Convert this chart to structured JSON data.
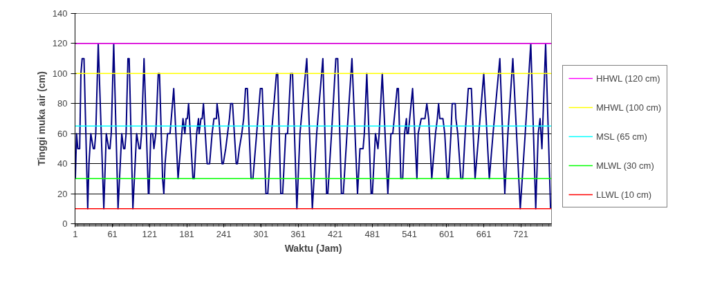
{
  "chart_data": {
    "type": "line",
    "xlabel": "Waktu (Jam)",
    "ylabel": "Tinggi muka air (cm)",
    "xlim": [
      0.5,
      770.5
    ],
    "xticks": [
      1,
      61,
      121,
      181,
      241,
      301,
      361,
      421,
      481,
      541,
      601,
      661,
      721
    ],
    "ylim": [
      0,
      140
    ],
    "yticks": [
      0,
      20,
      40,
      60,
      80,
      100,
      120,
      140
    ],
    "grid": "y",
    "legend": "right",
    "marker": "none",
    "line_style": "solid",
    "series": [
      {
        "color": "#000080",
        "x": [
          1,
          3,
          5,
          8,
          10,
          12,
          15,
          21,
          23,
          26,
          30,
          32,
          34,
          38,
          47,
          51,
          55,
          57,
          59,
          63,
          70,
          76,
          79,
          81,
          83,
          86,
          88,
          94,
          100,
          104,
          106,
          108,
          112,
          119,
          120,
          123,
          126,
          128,
          131,
          135,
          137,
          142,
          144,
          146,
          150,
          154,
          160,
          167,
          173,
          175,
          178,
          180,
          182,
          184,
          191,
          193,
          197,
          200,
          201,
          204,
          206,
          208,
          214,
          218,
          222,
          225,
          229,
          230,
          233,
          238,
          240,
          244,
          247,
          250,
          252,
          255,
          261,
          263,
          266,
          270,
          273,
          276,
          279,
          285,
          288,
          294,
          300,
          303,
          309,
          312,
          318,
          324,
          326,
          328,
          333,
          336,
          341,
          344,
          349,
          352,
          359,
          364,
          375,
          384,
          391,
          401,
          407,
          409,
          415,
          422,
          425,
          431,
          434,
          440,
          448,
          457,
          461,
          466,
          468,
          472,
          479,
          481,
          486,
          490,
          492,
          497,
          506,
          511,
          514,
          521,
          523,
          527,
          530,
          533,
          536,
          537,
          539,
          546,
          553,
          555,
          560,
          566,
          569,
          572,
          577,
          583,
          586,
          588,
          590,
          595,
          598,
          602,
          604,
          608,
          610,
          615,
          616,
          619,
          624,
          627,
          631,
          636,
          641,
          647,
          653,
          661,
          670,
          676,
          687,
          695,
          700,
          708,
          720,
          728,
          737,
          745,
          749,
          752,
          755,
          761,
          769
        ],
        "values": [
          30,
          60,
          50,
          50,
          100,
          110,
          110,
          10,
          40,
          60,
          50,
          50,
          60,
          120,
          10,
          60,
          50,
          50,
          60,
          120,
          10,
          60,
          50,
          50,
          60,
          110,
          110,
          10,
          60,
          50,
          50,
          60,
          110,
          20,
          20,
          60,
          60,
          50,
          60,
          100,
          100,
          30,
          20,
          40,
          60,
          60,
          90,
          30,
          60,
          70,
          60,
          70,
          70,
          80,
          30,
          30,
          60,
          70,
          60,
          70,
          70,
          80,
          40,
          40,
          60,
          70,
          70,
          80,
          70,
          40,
          40,
          50,
          60,
          70,
          80,
          80,
          40,
          40,
          50,
          60,
          70,
          90,
          90,
          30,
          30,
          60,
          90,
          90,
          20,
          20,
          60,
          90,
          100,
          100,
          20,
          20,
          60,
          60,
          100,
          100,
          10,
          60,
          110,
          10,
          60,
          110,
          20,
          20,
          60,
          110,
          110,
          20,
          20,
          60,
          110,
          20,
          50,
          50,
          60,
          100,
          20,
          20,
          60,
          50,
          60,
          100,
          20,
          60,
          60,
          90,
          90,
          30,
          30,
          60,
          70,
          60,
          60,
          90,
          30,
          60,
          70,
          70,
          80,
          70,
          30,
          60,
          70,
          80,
          70,
          70,
          60,
          30,
          30,
          60,
          80,
          80,
          70,
          60,
          30,
          30,
          60,
          90,
          90,
          30,
          60,
          100,
          30,
          60,
          110,
          20,
          60,
          110,
          10,
          60,
          120,
          10,
          60,
          70,
          50,
          120,
          10
        ]
      },
      {
        "name": "HHWL (120 cm)",
        "color": "#ff00ff",
        "x": [
          1,
          770
        ],
        "values": [
          120,
          120
        ]
      },
      {
        "name": "MHWL (100 cm)",
        "color": "#ffff00",
        "x": [
          1,
          770
        ],
        "values": [
          100,
          100
        ]
      },
      {
        "name": "MSL (65 cm)",
        "color": "#00ffff",
        "x": [
          1,
          770
        ],
        "values": [
          65,
          65
        ]
      },
      {
        "name": "MLWL (30 cm)",
        "color": "#00ff00",
        "x": [
          1,
          770
        ],
        "values": [
          30,
          30
        ]
      },
      {
        "name": "LLWL (10 cm)",
        "color": "#ff0000",
        "x": [
          1,
          770
        ],
        "values": [
          10,
          10
        ]
      }
    ]
  }
}
